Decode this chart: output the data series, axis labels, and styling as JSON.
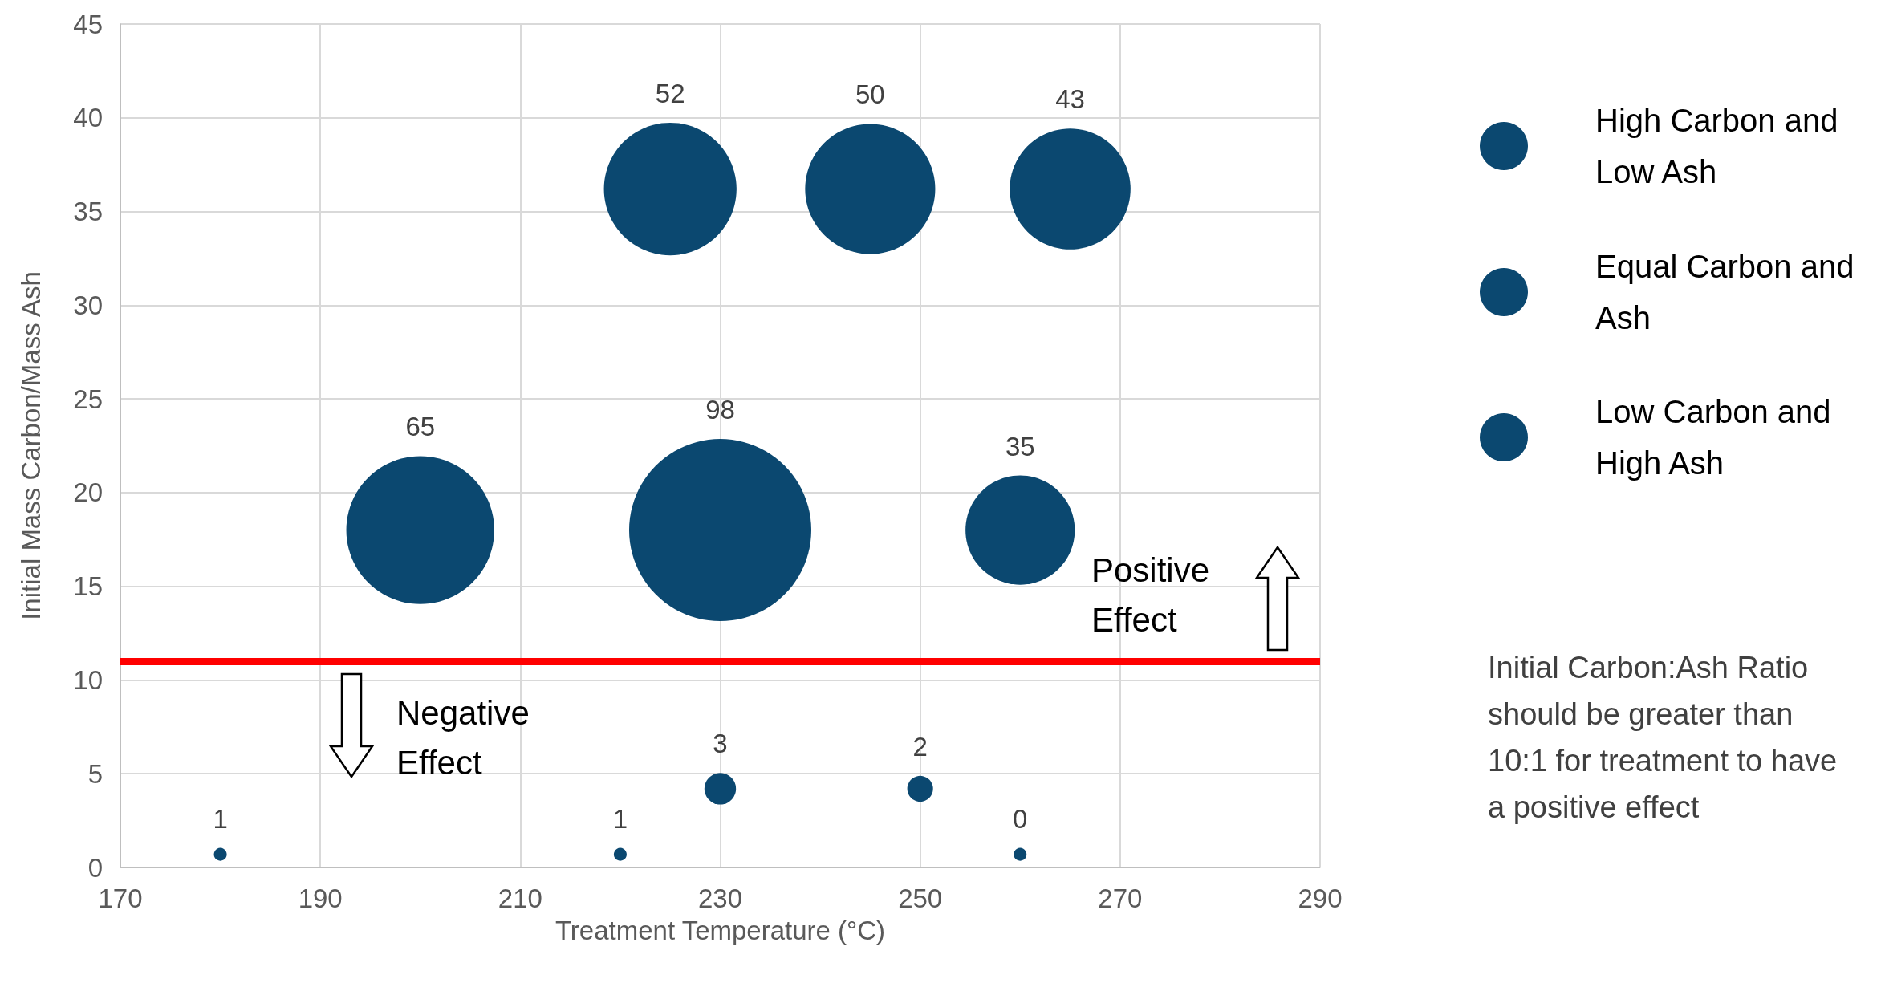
{
  "chart_data": {
    "type": "bubble",
    "xlabel": "Treatment Temperature (°C)",
    "ylabel": "Initial Mass Carbon/Mass Ash",
    "xlim": [
      170,
      290
    ],
    "xticks": [
      170,
      190,
      210,
      230,
      250,
      270,
      290
    ],
    "ylim": [
      0,
      45
    ],
    "yticks": [
      0,
      5,
      10,
      15,
      20,
      25,
      30,
      35,
      40,
      45
    ],
    "grid": true,
    "legend": "right",
    "series": [
      {
        "name": "High Carbon and Low Ash",
        "color": "#0b4870",
        "x": [
          225,
          245,
          265
        ],
        "values": [
          36.2,
          36.2,
          36.2
        ],
        "sizes": [
          0.53,
          0.51,
          0.44
        ]
      },
      {
        "name": "Equal Carbon and Ash",
        "color": "#0b4870",
        "x": [
          200,
          230,
          260
        ],
        "values": [
          18,
          18,
          18
        ],
        "sizes": [
          0.66,
          1,
          0.36
        ]
      },
      {
        "name": "Low Carbon and High Ash",
        "color": "#0b4870",
        "x": [
          230,
          250,
          180,
          220,
          260
        ],
        "values": [
          4.2,
          4.2,
          0.7,
          0.7,
          0.7
        ],
        "sizes": [
          0.03,
          0.02,
          0.005,
          0.005,
          0.005
        ]
      }
    ],
    "ref_lines": [
      {
        "axis": "y",
        "value": 11,
        "color": "#ff0000"
      }
    ],
    "annotations": [
      "Positive Effect",
      "Negative Effect",
      "Initial Carbon:Ash Ratio should be greater than 10:1 for treatment to have a positive effect",
      "52",
      "50",
      "43",
      "65",
      "98",
      "35",
      "3",
      "2",
      "1",
      "1",
      "0"
    ]
  }
}
